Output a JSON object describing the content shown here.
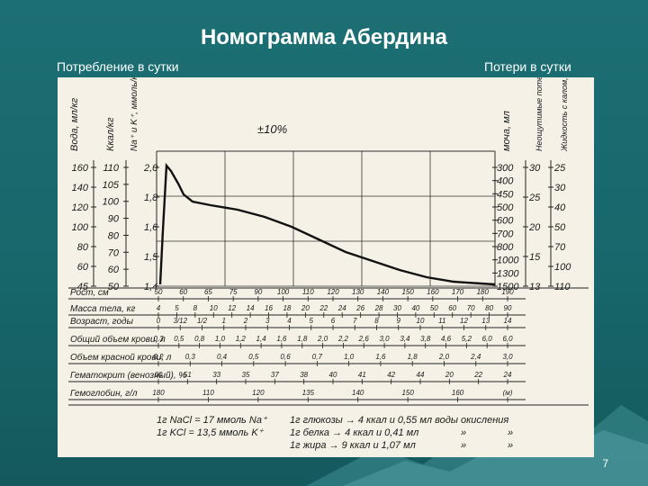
{
  "slide": {
    "title": "Номограмма Абердина",
    "subtitle_left": "Потребление в сутки",
    "subtitle_right": "Потери в сутки",
    "page_number": "7"
  },
  "nomogram": {
    "left_headers": [
      "Вода, мл/кг",
      "Ккал/кг",
      "Na⁺ и K⁺, ммоль/кг"
    ],
    "right_headers": [
      "моча, мл",
      "Неощутимые потери, мл/кг",
      "Жидкость с калом, мл"
    ],
    "tolerance_label": "±10%",
    "water_ticks": [
      "160",
      "140",
      "120",
      "100",
      "80",
      "60",
      "45"
    ],
    "kcal_ticks": [
      "110",
      "105",
      "100",
      "90",
      "80",
      "70",
      "60",
      "50"
    ],
    "electrolyte_ticks": [
      "2,0",
      "1,8",
      "1,6",
      "1,5",
      "1,4"
    ],
    "urine_ticks": [
      "300",
      "400",
      "450",
      "500",
      "600",
      "700",
      "800",
      "1000",
      "1300",
      "1500"
    ],
    "insensible_ticks": [
      "30",
      "25",
      "20",
      "15",
      "13"
    ],
    "stool_ticks": [
      "25",
      "30",
      "40",
      "50",
      "70",
      "100",
      "110"
    ],
    "scales": [
      {
        "label": "Рост, см",
        "ticks": [
          "50",
          "60",
          "65",
          "75",
          "90",
          "100",
          "110",
          "120",
          "130",
          "140",
          "150",
          "160",
          "170",
          "180",
          "190"
        ]
      },
      {
        "label": "Масса тела, кг",
        "ticks": [
          "4",
          "5",
          "8",
          "10",
          "12",
          "14",
          "16",
          "18",
          "20",
          "22",
          "24",
          "26",
          "28",
          "30",
          "40",
          "50",
          "60",
          "70",
          "80",
          "90"
        ]
      },
      {
        "label": "Возраст, годы",
        "ticks": [
          "0",
          "3/12",
          "1/2",
          "1",
          "2",
          "3",
          "4",
          "5",
          "6",
          "7",
          "8",
          "9",
          "10",
          "11",
          "12",
          "13",
          "14"
        ]
      },
      {
        "label": "Общий объем крови, л",
        "ticks": [
          "0,3",
          "0,5",
          "0,8",
          "1,0",
          "1,2",
          "1,4",
          "1,6",
          "1,8",
          "2,0",
          "2,2",
          "2,6",
          "3,0",
          "3,4",
          "3,8",
          "4,6",
          "5,2",
          "6,0",
          "6,0"
        ]
      },
      {
        "label": "Объем красной крови, л",
        "ticks": [
          "0,2",
          "0,3",
          "0,4",
          "0,5",
          "0,6",
          "0,7",
          "1,0",
          "1,6",
          "1,8",
          "2,0",
          "2,4",
          "3,0"
        ]
      },
      {
        "label": "Гематокрит (венозный), %",
        "ticks": [
          "60",
          "51",
          "33",
          "35",
          "37",
          "38",
          "40",
          "41",
          "42",
          "44",
          "20",
          "22",
          "24"
        ]
      },
      {
        "label": "Гемоглобин, г/л",
        "ticks": [
          "180",
          "110",
          "120",
          "135",
          "140",
          "150",
          "160",
          "(м)"
        ]
      }
    ],
    "footnotes_left": [
      "1г NaCl = 17 ммоль Na⁺",
      "1г KCl = 13,5 ммоль K⁺"
    ],
    "footnotes_right": [
      "1г глюкозы → 4 ккал и 0,55 мл воды окисления",
      "1г белка → 4 ккал и 0,41 мл",
      "1г жира → 9 ккал и 1,07 мл"
    ],
    "ditto": [
      "»",
      "»",
      "»",
      "»"
    ]
  }
}
